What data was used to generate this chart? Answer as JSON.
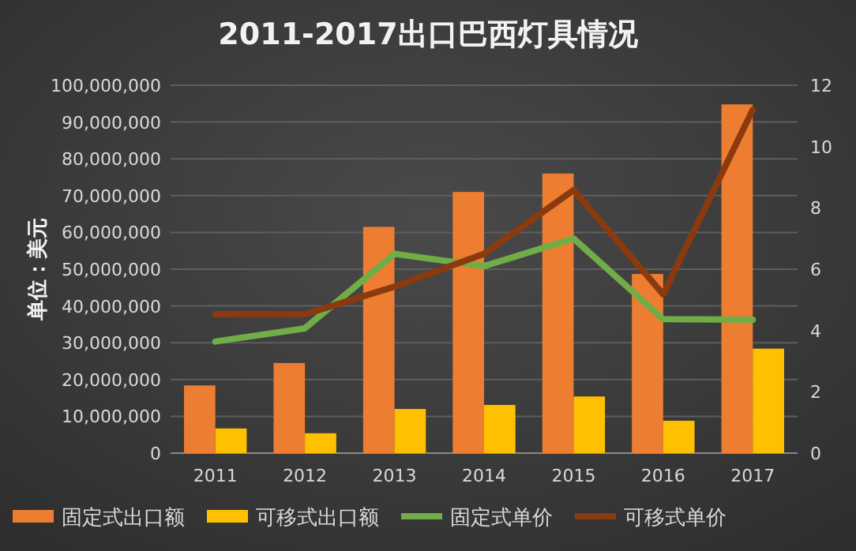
{
  "chart_data": {
    "type": "bar",
    "title": "2011-2017出口巴西灯具情况",
    "ylabel": "单位：美元",
    "categories": [
      "2011",
      "2012",
      "2013",
      "2014",
      "2015",
      "2016",
      "2017"
    ],
    "series": [
      {
        "name": "固定式出口额",
        "color": "#ed7d31",
        "values": [
          18400000,
          24500000,
          61500000,
          71000000,
          76000000,
          48700000,
          94800000
        ]
      },
      {
        "name": "可移式出口额",
        "color": "#ffc000",
        "values": [
          6700000,
          5400000,
          12000000,
          13100000,
          15400000,
          8800000,
          28400000
        ]
      },
      {
        "name": "固定式单价",
        "type": "line",
        "axis": "y2",
        "color": "#70ad47",
        "values": [
          3.64,
          4.07,
          6.5,
          6.1,
          7.0,
          4.37,
          4.35
        ]
      },
      {
        "name": "可移式单价",
        "type": "line",
        "axis": "y2",
        "color": "#8b3a10",
        "values": [
          4.53,
          4.53,
          5.43,
          6.5,
          8.58,
          5.18,
          11.2
        ]
      }
    ],
    "ylim": [
      0,
      100000000
    ],
    "yticks": [
      {
        "value": 0,
        "label": "0"
      },
      {
        "value": 10000000,
        "label": "10,000,000"
      },
      {
        "value": 20000000,
        "label": "20,000,000"
      },
      {
        "value": 30000000,
        "label": "30,000,000"
      },
      {
        "value": 40000000,
        "label": "40,000,000"
      },
      {
        "value": 50000000,
        "label": "50,000,000"
      },
      {
        "value": 60000000,
        "label": "60,000,000"
      },
      {
        "value": 70000000,
        "label": "70,000,000"
      },
      {
        "value": 80000000,
        "label": "80,000,000"
      },
      {
        "value": 90000000,
        "label": "90,000,000"
      },
      {
        "value": 100000000,
        "label": "100,000,000"
      }
    ],
    "y2lim": [
      0,
      12
    ],
    "y2ticks": [
      0,
      2,
      4,
      6,
      8,
      10,
      12
    ],
    "grid": "y",
    "legend": "bottom",
    "marker": "none",
    "line_style": "solid"
  }
}
